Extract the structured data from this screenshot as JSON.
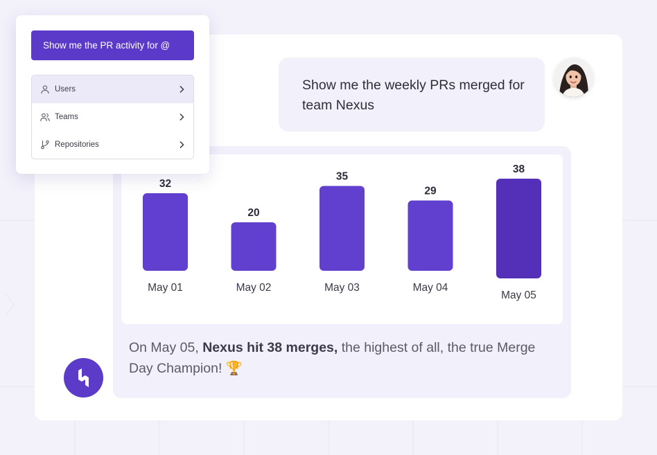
{
  "popup": {
    "prompt": "Show me the PR activity for @",
    "items": [
      {
        "label": "Users",
        "icon": "user-icon"
      },
      {
        "label": "Teams",
        "icon": "team-icon"
      },
      {
        "label": "Repositories",
        "icon": "repository-icon"
      }
    ]
  },
  "chat": {
    "user_message": "Show me the weekly PRs merged for team Nexus",
    "answer_prefix": "On May 05,",
    "answer_bold": "Nexus hit 38 merges,",
    "answer_suffix": "the highest of all, the true Merge Day Champion! 🏆"
  },
  "colors": {
    "accent": "#5b39c9",
    "bar": "#6240cf",
    "bar_highlight": "#5430b8",
    "panel": "#f2f1fb"
  },
  "chart_data": {
    "type": "bar",
    "title": "",
    "xlabel": "",
    "ylabel": "",
    "categories": [
      "May 01",
      "May 02",
      "May 03",
      "May 04",
      "May 05"
    ],
    "values": [
      32,
      20,
      35,
      29,
      38
    ],
    "highlight_index": 4
  }
}
